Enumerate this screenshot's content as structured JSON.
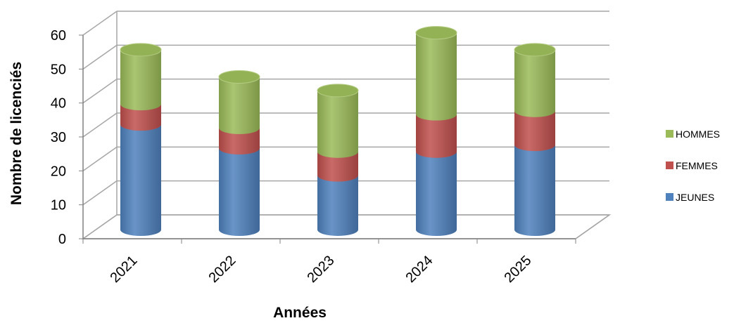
{
  "chart_data": {
    "type": "bar",
    "stacked": true,
    "categories": [
      "2021",
      "2022",
      "2023",
      "2024",
      "2025"
    ],
    "series": [
      {
        "name": "JEUNES",
        "values": [
          31,
          24,
          16,
          23,
          25
        ],
        "color": "#4F81BD"
      },
      {
        "name": "FEMMES",
        "values": [
          6,
          6,
          7,
          11,
          10
        ],
        "color": "#C0504D"
      },
      {
        "name": "HOMMES",
        "values": [
          16,
          15,
          18,
          24,
          18
        ],
        "color": "#9BBB59"
      }
    ],
    "xlabel": "Années",
    "ylabel": "Nombre de licenciés",
    "ylim": [
      0,
      60
    ],
    "yticks": [
      "0",
      "10",
      "20",
      "30",
      "40",
      "50",
      "60"
    ],
    "grid": true,
    "legend_position": "right",
    "legend_order": [
      "HOMMES",
      "FEMMES",
      "JEUNES"
    ]
  }
}
